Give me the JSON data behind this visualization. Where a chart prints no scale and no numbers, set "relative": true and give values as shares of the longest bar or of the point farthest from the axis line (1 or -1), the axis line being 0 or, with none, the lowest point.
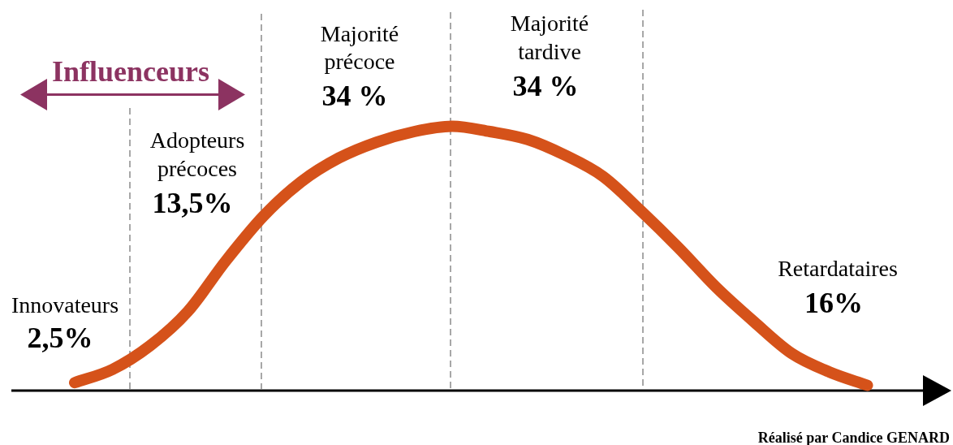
{
  "chart_data": {
    "type": "line",
    "relative": true,
    "categories": [
      null,
      null,
      null,
      null,
      null,
      null,
      null,
      null,
      null,
      null,
      null,
      null,
      null,
      null,
      null,
      null,
      null,
      null,
      null,
      null,
      null,
      null
    ],
    "values": [
      0.03,
      0.08,
      0.17,
      0.3,
      0.49,
      0.66,
      0.79,
      0.88,
      0.94,
      0.98,
      1,
      0.98,
      0.95,
      0.89,
      0.81,
      0.68,
      0.54,
      0.39,
      0.26,
      0.14,
      0.07,
      0.02
    ],
    "color": "#d5521a",
    "marker": "none",
    "line_style": "solid",
    "grid": "x",
    "annotations": [
      "Influenceurs",
      "Innovateurs",
      "2,5%",
      "Adopteurs précoces",
      "13,5%",
      "Majorité précoce",
      "34 %",
      "Majorité tardive",
      "34 %",
      "Retardataires",
      "16%",
      "Réalisé par Candice GENARD"
    ]
  }
}
